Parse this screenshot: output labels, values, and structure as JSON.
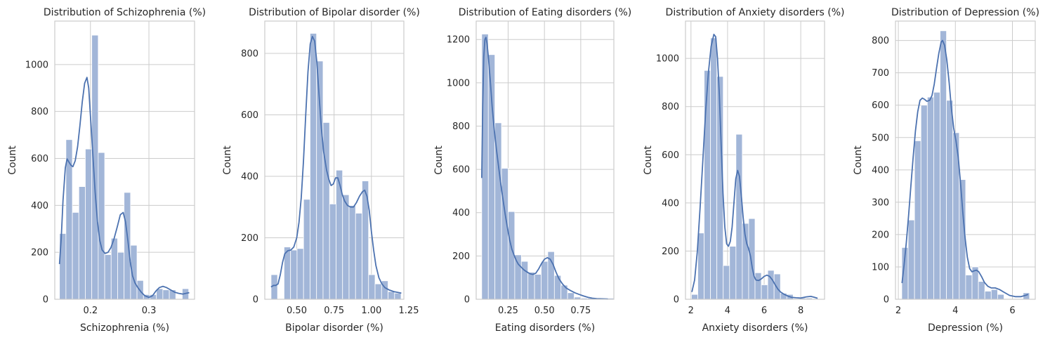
{
  "chart_data": [
    {
      "type": "histogram",
      "title": "Distribution of Schizophrenia (%)",
      "xlabel": "Schizophrenia (%)",
      "ylabel": "Count",
      "xlim": [
        0.139,
        0.378
      ],
      "ylim": [
        0,
        1185
      ],
      "xticks": [
        0.2,
        0.3
      ],
      "xtick_labels": [
        "0.2",
        "0.3"
      ],
      "yticks": [
        0,
        200,
        400,
        600,
        800,
        1000
      ],
      "bin_start": 0.147,
      "bin_width": 0.01105,
      "counts": [
        280,
        680,
        370,
        480,
        640,
        1125,
        625,
        190,
        260,
        200,
        455,
        230,
        80,
        20,
        20,
        45,
        40,
        40,
        0,
        45
      ],
      "kde": [
        [
          0.147,
          150
        ],
        [
          0.15,
          260
        ],
        [
          0.153,
          420
        ],
        [
          0.157,
          560
        ],
        [
          0.16,
          598
        ],
        [
          0.163,
          585
        ],
        [
          0.167,
          570
        ],
        [
          0.17,
          565
        ],
        [
          0.174,
          590
        ],
        [
          0.178,
          650
        ],
        [
          0.182,
          740
        ],
        [
          0.186,
          840
        ],
        [
          0.19,
          920
        ],
        [
          0.194,
          945
        ],
        [
          0.197,
          900
        ],
        [
          0.2,
          780
        ],
        [
          0.204,
          620
        ],
        [
          0.208,
          455
        ],
        [
          0.212,
          330
        ],
        [
          0.216,
          250
        ],
        [
          0.22,
          210
        ],
        [
          0.225,
          195
        ],
        [
          0.23,
          200
        ],
        [
          0.235,
          220
        ],
        [
          0.24,
          255
        ],
        [
          0.246,
          310
        ],
        [
          0.251,
          360
        ],
        [
          0.256,
          370
        ],
        [
          0.26,
          330
        ],
        [
          0.264,
          250
        ],
        [
          0.268,
          160
        ],
        [
          0.272,
          100
        ],
        [
          0.276,
          70
        ],
        [
          0.281,
          50
        ],
        [
          0.287,
          30
        ],
        [
          0.293,
          15
        ],
        [
          0.3,
          8
        ],
        [
          0.306,
          15
        ],
        [
          0.312,
          35
        ],
        [
          0.318,
          50
        ],
        [
          0.324,
          55
        ],
        [
          0.33,
          50
        ],
        [
          0.337,
          40
        ],
        [
          0.344,
          30
        ],
        [
          0.351,
          25
        ],
        [
          0.358,
          22
        ],
        [
          0.365,
          26
        ],
        [
          0.369,
          28
        ]
      ]
    },
    {
      "type": "histogram",
      "title": "Distribution of Bipolar disorder (%)",
      "xlabel": "Bipolar disorder (%)",
      "ylabel": "Count",
      "xlim": [
        0.286,
        1.217
      ],
      "ylim": [
        0,
        905
      ],
      "xticks": [
        0.5,
        0.75,
        1.0,
        1.25
      ],
      "xtick_labels": [
        "0.50",
        "0.75",
        "1.00",
        "1.25"
      ],
      "yticks": [
        0,
        200,
        400,
        600,
        800
      ],
      "bin_start": 0.328,
      "bin_width": 0.04352,
      "counts": [
        80,
        0,
        170,
        160,
        165,
        325,
        865,
        775,
        575,
        310,
        420,
        340,
        305,
        280,
        385,
        80,
        50,
        60,
        25,
        20
      ],
      "kde": [
        [
          0.328,
          40
        ],
        [
          0.345,
          45
        ],
        [
          0.36,
          45
        ],
        [
          0.375,
          50
        ],
        [
          0.39,
          80
        ],
        [
          0.405,
          120
        ],
        [
          0.42,
          148
        ],
        [
          0.44,
          158
        ],
        [
          0.46,
          160
        ],
        [
          0.48,
          170
        ],
        [
          0.5,
          200
        ],
        [
          0.515,
          250
        ],
        [
          0.53,
          330
        ],
        [
          0.545,
          450
        ],
        [
          0.56,
          600
        ],
        [
          0.575,
          740
        ],
        [
          0.59,
          830
        ],
        [
          0.605,
          855
        ],
        [
          0.62,
          840
        ],
        [
          0.635,
          770
        ],
        [
          0.65,
          660
        ],
        [
          0.665,
          555
        ],
        [
          0.68,
          480
        ],
        [
          0.7,
          420
        ],
        [
          0.715,
          390
        ],
        [
          0.73,
          370
        ],
        [
          0.745,
          375
        ],
        [
          0.76,
          395
        ],
        [
          0.775,
          395
        ],
        [
          0.79,
          370
        ],
        [
          0.805,
          340
        ],
        [
          0.82,
          320
        ],
        [
          0.84,
          305
        ],
        [
          0.86,
          300
        ],
        [
          0.88,
          300
        ],
        [
          0.9,
          315
        ],
        [
          0.92,
          335
        ],
        [
          0.94,
          350
        ],
        [
          0.955,
          355
        ],
        [
          0.97,
          335
        ],
        [
          0.985,
          290
        ],
        [
          1.0,
          220
        ],
        [
          1.015,
          160
        ],
        [
          1.03,
          110
        ],
        [
          1.05,
          70
        ],
        [
          1.07,
          50
        ],
        [
          1.09,
          38
        ],
        [
          1.12,
          30
        ],
        [
          1.15,
          25
        ],
        [
          1.18,
          22
        ],
        [
          1.2,
          20
        ]
      ]
    },
    {
      "type": "histogram",
      "title": "Distribution of Eating disorders (%)",
      "xlabel": "Eating disorders (%)",
      "ylabel": "Count",
      "xlim": [
        0.03,
        0.978
      ],
      "ylim": [
        0,
        1285
      ],
      "xticks": [
        0.25,
        0.5,
        0.75
      ],
      "xtick_labels": [
        "0.25",
        "0.50",
        "0.75"
      ],
      "yticks": [
        0,
        200,
        400,
        600,
        800,
        1000,
        1200
      ],
      "bin_start": 0.068,
      "bin_width": 0.0455,
      "counts": [
        1225,
        1130,
        815,
        605,
        405,
        205,
        175,
        125,
        115,
        175,
        220,
        110,
        65,
        30,
        10,
        5,
        5,
        0,
        0,
        5
      ],
      "kde": [
        [
          0.068,
          560
        ],
        [
          0.075,
          900
        ],
        [
          0.082,
          1120
        ],
        [
          0.09,
          1200
        ],
        [
          0.097,
          1210
        ],
        [
          0.105,
          1180
        ],
        [
          0.115,
          1110
        ],
        [
          0.128,
          1000
        ],
        [
          0.14,
          890
        ],
        [
          0.155,
          780
        ],
        [
          0.17,
          690
        ],
        [
          0.185,
          610
        ],
        [
          0.2,
          530
        ],
        [
          0.215,
          460
        ],
        [
          0.23,
          390
        ],
        [
          0.245,
          330
        ],
        [
          0.26,
          275
        ],
        [
          0.275,
          232
        ],
        [
          0.29,
          205
        ],
        [
          0.305,
          180
        ],
        [
          0.32,
          162
        ],
        [
          0.34,
          148
        ],
        [
          0.36,
          135
        ],
        [
          0.38,
          126
        ],
        [
          0.4,
          118
        ],
        [
          0.42,
          115
        ],
        [
          0.44,
          120
        ],
        [
          0.46,
          140
        ],
        [
          0.48,
          165
        ],
        [
          0.5,
          185
        ],
        [
          0.52,
          192
        ],
        [
          0.54,
          185
        ],
        [
          0.56,
          160
        ],
        [
          0.58,
          125
        ],
        [
          0.6,
          95
        ],
        [
          0.625,
          70
        ],
        [
          0.65,
          52
        ],
        [
          0.68,
          40
        ],
        [
          0.71,
          30
        ],
        [
          0.74,
          22
        ],
        [
          0.77,
          15
        ],
        [
          0.8,
          9
        ],
        [
          0.83,
          5
        ],
        [
          0.86,
          3
        ],
        [
          0.9,
          2
        ],
        [
          0.937,
          1
        ]
      ]
    },
    {
      "type": "histogram",
      "title": "Distribution of Anxiety disorders (%)",
      "xlabel": "Anxiety disorders (%)",
      "ylabel": "Count",
      "xlim": [
        1.7,
        9.3
      ],
      "ylim": [
        0,
        1155
      ],
      "xticks": [
        2,
        4,
        6,
        8
      ],
      "xtick_labels": [
        "2",
        "4",
        "6",
        "8"
      ],
      "yticks": [
        0,
        200,
        400,
        600,
        800,
        1000
      ],
      "bin_start": 2.025,
      "bin_width": 0.3475,
      "counts": [
        20,
        275,
        950,
        1085,
        925,
        140,
        220,
        685,
        315,
        335,
        110,
        60,
        120,
        105,
        25,
        20,
        0,
        5,
        5,
        0
      ],
      "kde": [
        [
          2.05,
          30
        ],
        [
          2.2,
          80
        ],
        [
          2.35,
          200
        ],
        [
          2.5,
          380
        ],
        [
          2.65,
          580
        ],
        [
          2.8,
          780
        ],
        [
          2.95,
          940
        ],
        [
          3.1,
          1050
        ],
        [
          3.25,
          1100
        ],
        [
          3.35,
          1090
        ],
        [
          3.45,
          1000
        ],
        [
          3.55,
          850
        ],
        [
          3.65,
          640
        ],
        [
          3.75,
          440
        ],
        [
          3.85,
          300
        ],
        [
          3.95,
          230
        ],
        [
          4.05,
          220
        ],
        [
          4.15,
          240
        ],
        [
          4.25,
          300
        ],
        [
          4.35,
          400
        ],
        [
          4.45,
          500
        ],
        [
          4.55,
          535
        ],
        [
          4.65,
          510
        ],
        [
          4.75,
          430
        ],
        [
          4.85,
          340
        ],
        [
          4.95,
          270
        ],
        [
          5.05,
          230
        ],
        [
          5.15,
          210
        ],
        [
          5.25,
          180
        ],
        [
          5.35,
          130
        ],
        [
          5.45,
          95
        ],
        [
          5.55,
          80
        ],
        [
          5.7,
          78
        ],
        [
          5.85,
          85
        ],
        [
          6.0,
          95
        ],
        [
          6.15,
          100
        ],
        [
          6.3,
          95
        ],
        [
          6.45,
          80
        ],
        [
          6.6,
          60
        ],
        [
          6.75,
          42
        ],
        [
          6.9,
          30
        ],
        [
          7.1,
          20
        ],
        [
          7.3,
          13
        ],
        [
          7.5,
          8
        ],
        [
          7.75,
          6
        ],
        [
          8.0,
          5
        ],
        [
          8.3,
          10
        ],
        [
          8.55,
          12
        ],
        [
          8.75,
          8
        ],
        [
          8.92,
          4
        ]
      ]
    },
    {
      "type": "histogram",
      "title": "Distribution of Depression (%)",
      "xlabel": "Depression (%)",
      "ylabel": "Count",
      "xlim": [
        1.9,
        6.8
      ],
      "ylim": [
        0,
        860
      ],
      "xticks": [
        2,
        4,
        6
      ],
      "xtick_labels": [
        "2",
        "4",
        "6"
      ],
      "yticks": [
        0,
        100,
        200,
        300,
        400,
        500,
        600,
        700,
        800
      ],
      "bin_start": 2.12,
      "bin_width": 0.224,
      "counts": [
        160,
        245,
        490,
        600,
        625,
        640,
        830,
        615,
        515,
        370,
        75,
        100,
        55,
        25,
        30,
        15,
        0,
        0,
        0,
        20
      ],
      "kde": [
        [
          2.13,
          50
        ],
        [
          2.2,
          105
        ],
        [
          2.28,
          175
        ],
        [
          2.36,
          260
        ],
        [
          2.44,
          350
        ],
        [
          2.52,
          440
        ],
        [
          2.6,
          520
        ],
        [
          2.68,
          580
        ],
        [
          2.76,
          615
        ],
        [
          2.84,
          622
        ],
        [
          2.92,
          618
        ],
        [
          3.0,
          612
        ],
        [
          3.1,
          615
        ],
        [
          3.18,
          630
        ],
        [
          3.26,
          665
        ],
        [
          3.34,
          715
        ],
        [
          3.42,
          760
        ],
        [
          3.5,
          795
        ],
        [
          3.55,
          800
        ],
        [
          3.62,
          785
        ],
        [
          3.7,
          740
        ],
        [
          3.78,
          670
        ],
        [
          3.86,
          590
        ],
        [
          3.94,
          530
        ],
        [
          4.02,
          490
        ],
        [
          4.1,
          440
        ],
        [
          4.18,
          360
        ],
        [
          4.26,
          270
        ],
        [
          4.34,
          190
        ],
        [
          4.42,
          130
        ],
        [
          4.5,
          95
        ],
        [
          4.58,
          85
        ],
        [
          4.66,
          88
        ],
        [
          4.74,
          90
        ],
        [
          4.82,
          85
        ],
        [
          4.92,
          70
        ],
        [
          5.02,
          52
        ],
        [
          5.14,
          40
        ],
        [
          5.26,
          35
        ],
        [
          5.4,
          35
        ],
        [
          5.55,
          30
        ],
        [
          5.7,
          22
        ],
        [
          5.9,
          12
        ],
        [
          6.1,
          8
        ],
        [
          6.3,
          8
        ],
        [
          6.45,
          12
        ],
        [
          6.55,
          15
        ]
      ]
    }
  ]
}
